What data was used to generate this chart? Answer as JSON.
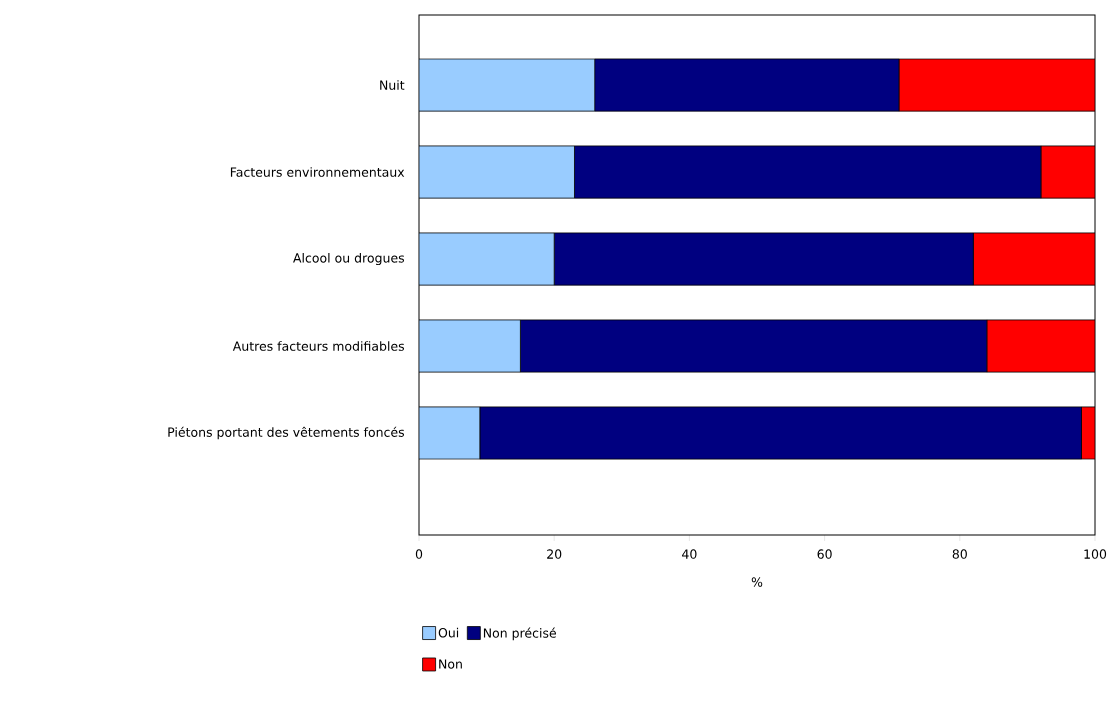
{
  "chart_data": {
    "type": "bar",
    "orientation": "horizontal",
    "stacked": true,
    "xlabel": "%",
    "categories": [
      "Nuit",
      "Facteurs environnementaux",
      "Alcool ou drogues",
      "Autres facteurs modifiables",
      "Piétons portant des vêtements foncés"
    ],
    "series": [
      {
        "name": "Oui",
        "color": "#99ccff",
        "values": [
          26,
          23,
          20,
          15,
          9
        ]
      },
      {
        "name": "Non précisé",
        "color": "#000080",
        "values": [
          45,
          69,
          62,
          69,
          89
        ]
      },
      {
        "name": "Non",
        "color": "#ff0000",
        "values": [
          29,
          8,
          18,
          16,
          2
        ]
      }
    ],
    "xlim": [
      0,
      100
    ],
    "xticks": [
      0,
      20,
      40,
      60,
      80,
      100
    ],
    "grid": false,
    "legend": "bottom"
  }
}
